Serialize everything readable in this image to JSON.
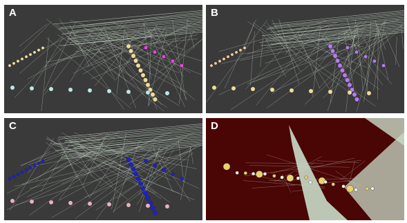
{
  "figure": {
    "panels": [
      {
        "label": "A",
        "background": "#3a3a3a",
        "edge_color": "#c9dcc8",
        "node_colors": [
          "#f1dc9c",
          "#bfe7e6",
          "#ff3df0"
        ]
      },
      {
        "label": "B",
        "background": "#3a3a3a",
        "edge_color": "#c9dcc8",
        "node_colors": [
          "#f4c99a",
          "#f1dc9c",
          "#b77cf3"
        ]
      },
      {
        "label": "C",
        "background": "#3a3a3a",
        "edge_color": "#c9dcc8",
        "node_colors": [
          "#1c1fd6",
          "#e8b3c4"
        ]
      },
      {
        "label": "D",
        "background": "#4a0505",
        "edge_color": "#c9dcc8",
        "node_colors": [
          "#e8d36a",
          "#f0f0e8"
        ]
      }
    ]
  }
}
